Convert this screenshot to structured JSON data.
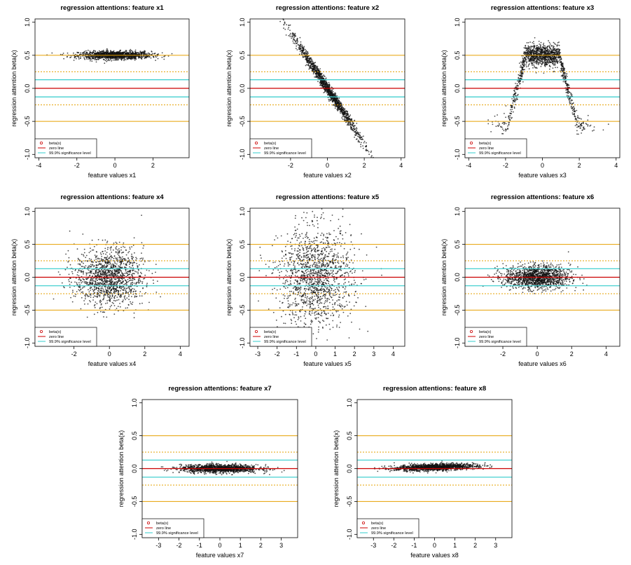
{
  "chart_data": [
    {
      "type": "scatter",
      "title": "regression attentions: feature x1",
      "xlabel": "feature values x1",
      "ylabel": "regression attention  beta(x)",
      "xlim": [
        -4.2,
        3.9
      ],
      "ylim": [
        -1.05,
        1.05
      ],
      "xticks": [
        -4,
        -2,
        0,
        2
      ],
      "yticks": [
        -1.0,
        -0.5,
        0.0,
        0.5,
        1.0
      ],
      "pattern": "flat",
      "beta_level": 0.5,
      "x_range": [
        -3.8,
        3.2
      ],
      "spread": 0.03,
      "hlines": {
        "zero": 0.0,
        "significance_999": [
          0.13,
          -0.13
        ],
        "dotted_orange": [
          0.25,
          -0.25
        ],
        "solid_orange": [
          0.5,
          -0.5
        ]
      },
      "legend": [
        "beta(x)",
        "zero line",
        "99.9% significance level"
      ],
      "legend_position": "bottom-left"
    },
    {
      "type": "scatter",
      "title": "regression attentions: feature x2",
      "xlabel": "feature values x2",
      "ylabel": "regression attention  beta(x)",
      "xlim": [
        -4.2,
        4.2
      ],
      "ylim": [
        -1.05,
        1.05
      ],
      "xticks": [
        -2,
        0,
        2,
        4
      ],
      "yticks": [
        -1.0,
        -0.5,
        0.0,
        0.5,
        1.0
      ],
      "pattern": "linear",
      "slope": -0.42,
      "intercept": 0.0,
      "x_range": [
        -3.6,
        4.0
      ],
      "spread": 0.05,
      "hlines": {
        "zero": 0.0,
        "significance_999": [
          0.13,
          -0.13
        ],
        "dotted_orange": [
          0.25,
          -0.25
        ],
        "solid_orange": [
          0.5,
          -0.5
        ]
      },
      "legend": [
        "beta(x)",
        "zero line",
        "99.9% significance level"
      ],
      "legend_position": "bottom-left"
    },
    {
      "type": "scatter",
      "title": "regression attentions: feature x3",
      "xlabel": "feature values x3",
      "ylabel": "regression attention  beta(x)",
      "xlim": [
        -4.2,
        4.2
      ],
      "ylim": [
        -1.05,
        1.05
      ],
      "xticks": [
        -4,
        -2,
        0,
        2,
        4
      ],
      "yticks": [
        -1.0,
        -0.5,
        0.0,
        0.5,
        1.0
      ],
      "pattern": "bump",
      "x_range": [
        -3.6,
        3.6
      ],
      "spread": 0.08,
      "hlines": {
        "zero": 0.0,
        "significance_999": [
          0.13,
          -0.13
        ],
        "dotted_orange": [
          0.25,
          -0.25
        ],
        "solid_orange": [
          0.5,
          -0.5
        ]
      },
      "legend": [
        "beta(x)",
        "zero line",
        "99.9% significance level"
      ],
      "legend_position": "bottom-left"
    },
    {
      "type": "scatter",
      "title": "regression attentions: feature x4",
      "xlabel": "feature values x4",
      "ylabel": "regression attention  beta(x)",
      "xlim": [
        -4.2,
        4.5
      ],
      "ylim": [
        -1.05,
        1.05
      ],
      "xticks": [
        -2,
        0,
        2,
        4
      ],
      "yticks": [
        -1.0,
        -0.5,
        0.0,
        0.5,
        1.0
      ],
      "pattern": "flat",
      "beta_level": 0.0,
      "x_range": [
        -3.5,
        3.5
      ],
      "spread": 0.22,
      "hlines": {
        "zero": 0.0,
        "significance_999": [
          0.13,
          -0.13
        ],
        "dotted_orange": [
          0.25,
          -0.25
        ],
        "solid_orange": [
          0.5,
          -0.5
        ]
      },
      "legend": [
        "beta(x)",
        "zero line",
        "99.9% significance level"
      ],
      "legend_position": "bottom-left"
    },
    {
      "type": "scatter",
      "title": "regression attentions: feature x5",
      "xlabel": "feature values x5",
      "ylabel": "regression attention  beta(x)",
      "xlim": [
        -3.4,
        4.6
      ],
      "ylim": [
        -1.05,
        1.05
      ],
      "xticks": [
        -3,
        -2,
        -1,
        0,
        1,
        2,
        3,
        4
      ],
      "yticks": [
        -1.0,
        -0.5,
        0.0,
        0.5,
        1.0
      ],
      "pattern": "flat",
      "beta_level": 0.0,
      "x_range": [
        -3.0,
        4.2
      ],
      "spread": 0.38,
      "hlines": {
        "zero": 0.0,
        "significance_999": [
          0.13,
          -0.13
        ],
        "dotted_orange": [
          0.25,
          -0.25
        ],
        "solid_orange": [
          0.5,
          -0.5
        ]
      },
      "legend": [
        "beta(x)",
        "zero line",
        "99.9% significance level"
      ],
      "legend_position": "bottom-left"
    },
    {
      "type": "scatter",
      "title": "regression attentions: feature x6",
      "xlabel": "feature values x6",
      "ylabel": "regression attention  beta(x)",
      "xlim": [
        -4.2,
        4.8
      ],
      "ylim": [
        -1.05,
        1.05
      ],
      "xticks": [
        -2,
        0,
        2,
        4
      ],
      "yticks": [
        -1.0,
        -0.5,
        0.0,
        0.5,
        1.0
      ],
      "pattern": "flat",
      "beta_level": 0.0,
      "x_range": [
        -3.2,
        3.4
      ],
      "spread": 0.09,
      "hlines": {
        "zero": 0.0,
        "significance_999": [
          0.13,
          -0.13
        ],
        "dotted_orange": [
          0.25,
          -0.25
        ],
        "solid_orange": [
          0.5,
          -0.5
        ]
      },
      "legend": [
        "beta(x)",
        "zero line",
        "99.9% significance level"
      ],
      "legend_position": "bottom-left"
    },
    {
      "type": "scatter",
      "title": "regression attentions: feature x7",
      "xlabel": "feature values x7",
      "ylabel": "regression attention  beta(x)",
      "xlim": [
        -3.8,
        3.8
      ],
      "ylim": [
        -1.05,
        1.05
      ],
      "xticks": [
        -3,
        -2,
        -1,
        0,
        1,
        2,
        3
      ],
      "yticks": [
        -1.0,
        -0.5,
        0.0,
        0.5,
        1.0
      ],
      "pattern": "flat",
      "beta_level": 0.0,
      "x_range": [
        -3.2,
        3.2
      ],
      "spread": 0.03,
      "hlines": {
        "zero": 0.0,
        "significance_999": [
          0.13,
          -0.13
        ],
        "dotted_orange": [
          0.25,
          -0.25
        ],
        "solid_orange": [
          0.5,
          -0.5
        ]
      },
      "legend": [
        "beta(x)",
        "zero line",
        "99.9% significance level"
      ],
      "legend_position": "bottom-left"
    },
    {
      "type": "scatter",
      "title": "regression attentions: feature x8",
      "xlabel": "feature values x8",
      "ylabel": "regression attention  beta(x)",
      "xlim": [
        -3.8,
        3.8
      ],
      "ylim": [
        -1.05,
        1.05
      ],
      "xticks": [
        -3,
        -2,
        -1,
        0,
        1,
        2,
        3
      ],
      "yticks": [
        -1.0,
        -0.5,
        0.0,
        0.5,
        1.0
      ],
      "pattern": "linear",
      "slope": 0.01,
      "intercept": 0.02,
      "x_range": [
        -3.0,
        3.0
      ],
      "spread": 0.025,
      "hlines": {
        "zero": 0.0,
        "significance_999": [
          0.13,
          -0.13
        ],
        "dotted_orange": [
          0.25,
          -0.25
        ],
        "solid_orange": [
          0.5,
          -0.5
        ]
      },
      "legend": [
        "beta(x)",
        "zero line",
        "99.9% significance level"
      ],
      "legend_position": "bottom-left"
    }
  ],
  "colors": {
    "points": "#111111",
    "zero_line": "#cc0000",
    "significance": "#33cccc",
    "orange": "#e6a000",
    "legend_point": "#cc0000"
  }
}
